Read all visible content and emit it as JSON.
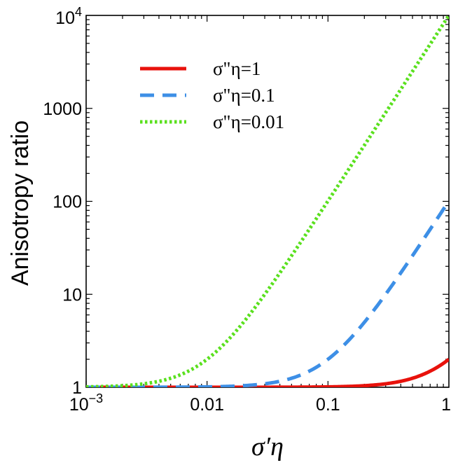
{
  "chart_data": {
    "type": "line",
    "title": "",
    "xlabel": "σ′η",
    "ylabel": "Anisotropy ratio",
    "xscale": "log",
    "yscale": "log",
    "xlim": [
      0.001,
      1
    ],
    "ylim": [
      1,
      10000
    ],
    "xticks": [
      {
        "value": 0.001,
        "base": "10",
        "exp": "−3"
      },
      {
        "value": 0.01,
        "label": "0.01"
      },
      {
        "value": 0.1,
        "label": "0.1"
      },
      {
        "value": 1,
        "label": "1"
      }
    ],
    "yticks": [
      {
        "value": 1,
        "label": "1"
      },
      {
        "value": 10,
        "label": "10"
      },
      {
        "value": 100,
        "label": "100"
      },
      {
        "value": 1000,
        "label": "1000"
      },
      {
        "value": 10000,
        "base": "10",
        "exp": "4"
      }
    ],
    "legend_position": "top-left",
    "series": [
      {
        "name": "σ\"η=1",
        "sigma2eta": 1,
        "color": "#e8120c",
        "style": "solid",
        "x": [
          0.001,
          0.01,
          0.1,
          0.2,
          0.3,
          0.5,
          0.7,
          1
        ],
        "y": [
          1.0,
          1.0,
          1.01,
          1.04,
          1.09,
          1.25,
          1.49,
          2.0
        ]
      },
      {
        "name": "σ\"η=0.1",
        "sigma2eta": 0.1,
        "color": "#3d8fe6",
        "style": "dashed",
        "x": [
          0.001,
          0.01,
          0.03,
          0.05,
          0.1,
          0.2,
          0.3,
          0.5,
          1
        ],
        "y": [
          1.0,
          1.01,
          1.09,
          1.25,
          2.0,
          5.0,
          10.0,
          26.0,
          101.0
        ]
      },
      {
        "name": "σ\"η=0.01",
        "sigma2eta": 0.01,
        "color": "#5ae01e",
        "style": "dotted",
        "x": [
          0.001,
          0.002,
          0.003,
          0.005,
          0.01,
          0.02,
          0.05,
          0.1,
          0.3,
          1
        ],
        "y": [
          1.01,
          1.04,
          1.09,
          1.25,
          2.0,
          5.0,
          26.0,
          101.0,
          901.0,
          10001.0
        ]
      }
    ]
  }
}
